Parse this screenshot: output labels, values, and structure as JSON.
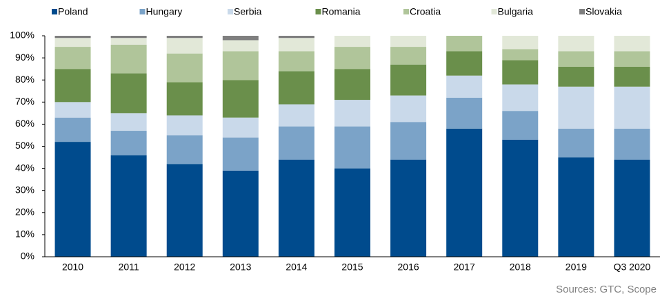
{
  "chart_data": {
    "type": "stacked_bar",
    "source": "Sources: GTC, Scope",
    "categories": [
      "2010",
      "2011",
      "2012",
      "2013",
      "2014",
      "2015",
      "2016",
      "2017",
      "2018",
      "2019",
      "Q3 2020"
    ],
    "series": [
      {
        "name": "Poland",
        "color": "#004b8d",
        "values": [
          52,
          46,
          42,
          39,
          44,
          40,
          44,
          58,
          53,
          45,
          44
        ]
      },
      {
        "name": "Hungary",
        "color": "#7ba3c8",
        "values": [
          11,
          11,
          13,
          15,
          15,
          19,
          17,
          14,
          13,
          13,
          14
        ]
      },
      {
        "name": "Serbia",
        "color": "#c9d9ea",
        "values": [
          7,
          8,
          9,
          9,
          10,
          12,
          12,
          10,
          12,
          19,
          19
        ]
      },
      {
        "name": "Romania",
        "color": "#6a8f4b",
        "values": [
          15,
          18,
          15,
          17,
          15,
          14,
          14,
          11,
          11,
          9,
          9
        ]
      },
      {
        "name": "Croatia",
        "color": "#b0c59a",
        "values": [
          10,
          13,
          13,
          13,
          9,
          10,
          8,
          7,
          5,
          7,
          7
        ]
      },
      {
        "name": "Bulgaria",
        "color": "#e2e8d8",
        "values": [
          4,
          3,
          7,
          5,
          6,
          5,
          5,
          0,
          6,
          7,
          7
        ]
      },
      {
        "name": "Slovakia",
        "color": "#7f7f7f",
        "values": [
          1,
          1,
          1,
          2,
          1,
          0,
          0,
          0,
          0,
          0,
          0
        ]
      }
    ],
    "ylim": [
      0,
      100
    ],
    "yticks": [
      {
        "value": 0,
        "label": "0%"
      },
      {
        "value": 10,
        "label": "10%"
      },
      {
        "value": 20,
        "label": "20%"
      },
      {
        "value": 30,
        "label": "30%"
      },
      {
        "value": 40,
        "label": "40%"
      },
      {
        "value": 50,
        "label": "50%"
      },
      {
        "value": 60,
        "label": "60%"
      },
      {
        "value": 70,
        "label": "70%"
      },
      {
        "value": 80,
        "label": "80%"
      },
      {
        "value": 90,
        "label": "90%"
      },
      {
        "value": 100,
        "label": "100%"
      }
    ],
    "legend": "top",
    "grid": false
  }
}
